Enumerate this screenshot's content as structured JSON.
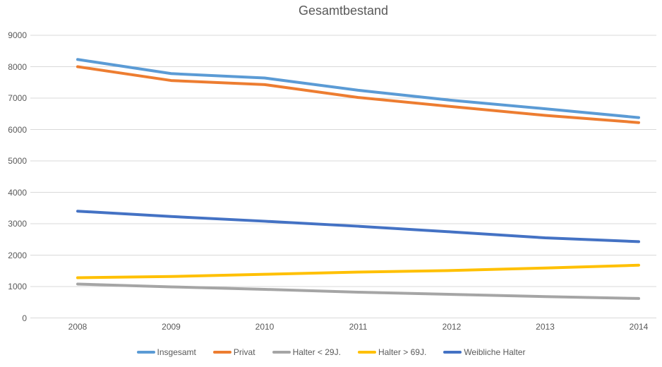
{
  "chart_data": {
    "type": "line",
    "title": "Gesamtbestand",
    "x": [
      "2008",
      "2009",
      "2010",
      "2011",
      "2012",
      "2013",
      "2014"
    ],
    "series": [
      {
        "name": "Insgesamt",
        "color": "#5B9BD5",
        "values": [
          8230,
          7780,
          7640,
          7250,
          6930,
          6660,
          6380
        ]
      },
      {
        "name": "Privat",
        "color": "#ED7D31",
        "values": [
          8000,
          7560,
          7430,
          7020,
          6730,
          6450,
          6220
        ]
      },
      {
        "name": "Halter < 29J.",
        "color": "#A5A5A5",
        "values": [
          1080,
          990,
          910,
          820,
          750,
          680,
          620
        ]
      },
      {
        "name": "Halter > 69J.",
        "color": "#FFC000",
        "values": [
          1280,
          1320,
          1390,
          1460,
          1510,
          1590,
          1680
        ]
      },
      {
        "name": "Weibliche Halter",
        "color": "#4472C4",
        "values": [
          3400,
          3230,
          3080,
          2920,
          2740,
          2550,
          2430
        ]
      }
    ],
    "xlabel": "",
    "ylabel": "",
    "ylim": [
      0,
      9000
    ],
    "yticks": [
      0,
      1000,
      2000,
      3000,
      4000,
      5000,
      6000,
      7000,
      8000,
      9000
    ],
    "grid": true,
    "gridline_color": "#D9D9D9",
    "legend_position": "bottom",
    "text_color": "#595959",
    "background_color": "#FFFFFF"
  }
}
